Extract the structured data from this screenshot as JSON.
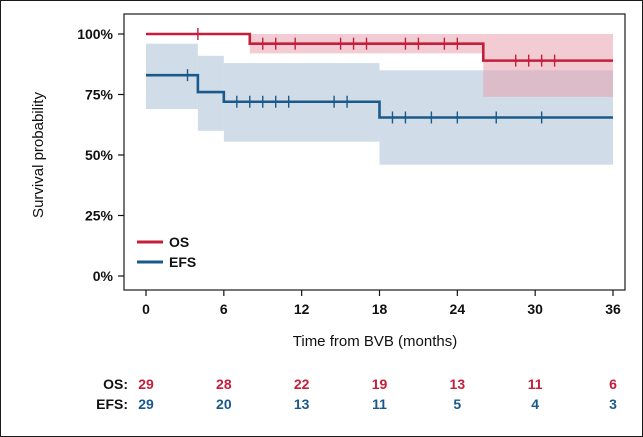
{
  "chart_data": {
    "type": "line",
    "chart_subtype": "kaplan-meier",
    "xlabel": "Time from BVB (months)",
    "ylabel": "Survival probability",
    "xlim": [
      0,
      36
    ],
    "ylim": [
      0,
      1
    ],
    "x_ticks": [
      "0",
      "6",
      "12",
      "18",
      "24",
      "30",
      "36"
    ],
    "y_ticks": [
      "0%",
      "25%",
      "50%",
      "75%",
      "100%"
    ],
    "grid": false,
    "legend_position": "bottom-left",
    "series": [
      {
        "name": "OS",
        "color": "#c41e3a",
        "ci_color": "#e8a0ae",
        "steps": [
          [
            0,
            1.0
          ],
          [
            8,
            0.96
          ],
          [
            26,
            0.89
          ],
          [
            36,
            0.89
          ]
        ],
        "ci_steps": [
          [
            0,
            1.0,
            1.0
          ],
          [
            8,
            1.0,
            0.92
          ],
          [
            26,
            1.0,
            0.74
          ],
          [
            36,
            1.0,
            0.74
          ]
        ],
        "censor_times": [
          4,
          9,
          10,
          11.5,
          15,
          16,
          17,
          20,
          21,
          23,
          24,
          28.5,
          29.5,
          30.5,
          31.5
        ]
      },
      {
        "name": "EFS",
        "color": "#1a5a8a",
        "ci_color": "#a9c1d6",
        "steps": [
          [
            0,
            0.83
          ],
          [
            4,
            0.76
          ],
          [
            6,
            0.72
          ],
          [
            18,
            0.655
          ],
          [
            36,
            0.655
          ]
        ],
        "ci_steps": [
          [
            0,
            0.96,
            0.69
          ],
          [
            4,
            0.91,
            0.6
          ],
          [
            6,
            0.88,
            0.555
          ],
          [
            18,
            0.85,
            0.46
          ],
          [
            36,
            0.85,
            0.46
          ]
        ],
        "censor_times": [
          3.2,
          7,
          8,
          9,
          10,
          11,
          14.5,
          15.5,
          19,
          20,
          22,
          24,
          27,
          30.5
        ]
      }
    ]
  },
  "risk_table": {
    "rows": [
      {
        "label": "OS:",
        "color": "#c41e3a",
        "values": [
          "29",
          "28",
          "22",
          "19",
          "13",
          "11",
          "6"
        ]
      },
      {
        "label": "EFS:",
        "color": "#1a5a8a",
        "values": [
          "29",
          "20",
          "13",
          "11",
          "5",
          "4",
          "3"
        ]
      }
    ]
  }
}
